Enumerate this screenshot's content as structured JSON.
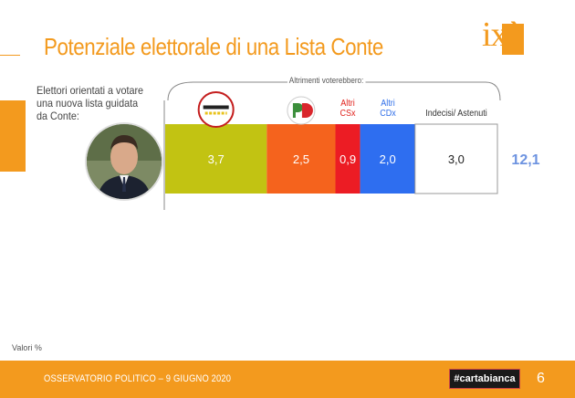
{
  "header": {
    "title": "Potenziale elettorale di una Lista Conte",
    "logo_text": "ixè"
  },
  "subtitle": "Elettori orientati a votare una nuova lista guidata da Conte:",
  "brace_label": "Altrimenti voterebbero:",
  "chart_data": {
    "type": "bar",
    "orientation": "horizontal-stacked",
    "categories": [
      "Movimento 5 Stelle",
      "PD",
      "Altri CSx",
      "Altri CDx",
      "Indecisi/ Astenuti"
    ],
    "values": [
      3.7,
      2.5,
      0.9,
      2.0,
      3.0
    ],
    "value_labels": [
      "3,7",
      "2,5",
      "0,9",
      "2,0",
      "3,0"
    ],
    "segment_headers": [
      "",
      "",
      "Altri\nCSx",
      "Altri\nCDx",
      "Indecisi/ Astenuti"
    ],
    "colors": [
      "#c2c312",
      "#f5631d",
      "#ec1c24",
      "#2e6ef0",
      "#ffffff"
    ],
    "header_colors": [
      "#333333",
      "#333333",
      "#e0211b",
      "#2f6ee8",
      "#333333"
    ],
    "label_colors": [
      "#ffffff",
      "#ffffff",
      "#ffffff",
      "#ffffff",
      "#222222"
    ],
    "total": 12.1,
    "total_label": "12,1",
    "total_color": "#6d93e0"
  },
  "footnote": "Valori %",
  "footer": {
    "text": "OSSERVATORIO POLITICO – 9 GIUGNO 2020",
    "badge": "#cartabianca",
    "page": "6"
  }
}
